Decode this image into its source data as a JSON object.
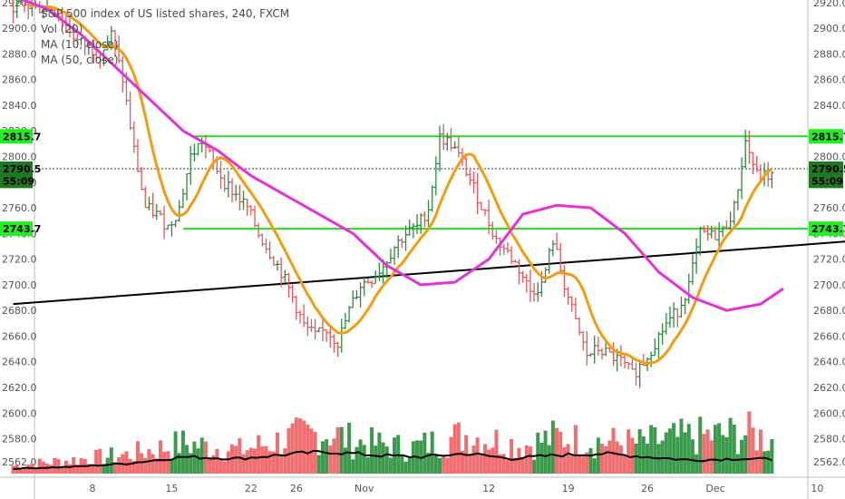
{
  "legend": {
    "title": "S&P 500 index of US listed shares, 240, FXCM",
    "vol": "Vol (20)",
    "ma10": "MA (10, close)",
    "ma50": "MA (50, close)"
  },
  "colors": {
    "up": "#2e8b3e",
    "down": "#e8575a",
    "vol_up": "#3c9a4c",
    "vol_down": "#f06d70",
    "ma10": "#f39c12",
    "ma50": "#e631d8",
    "level": "#22dd22",
    "trendline": "#000000",
    "tag_green": "#22ee22",
    "tag_dark": "#1f7a1f",
    "current": "#333333"
  },
  "chart_data": {
    "type": "candlestick",
    "title": "S&P 500 index of US listed shares, 240, FXCM",
    "yaxis": {
      "range": [
        2550,
        2922
      ],
      "ticks": [
        2562.0,
        2580.0,
        2600.0,
        2620.0,
        2640.0,
        2660.0,
        2680.0,
        2700.0,
        2720.0,
        2740.0,
        2760.0,
        2780.0,
        2800.0,
        2820.0,
        2840.0,
        2860.0,
        2880.0,
        2900.0,
        2920.0
      ],
      "labels_left": [
        "2562.0",
        "2580.0",
        "2600.0",
        "2620.0",
        "2640.0",
        "2660.0",
        "2680.0",
        "2700.0",
        "2720.0",
        "2740.0",
        "2760.0",
        "2780.0",
        "2800.0",
        "2820.0",
        "2840.0",
        "2860.0",
        "2880.0",
        "2900.0",
        "2920.0"
      ],
      "labels_right": [
        "2562.0",
        "2580.0",
        "2600.0",
        "2620.0",
        "2640.0",
        "2660.0",
        "2680.0",
        "2700.0",
        "2720.0",
        "2740.0",
        "2760.0",
        "",
        "2800.0",
        "",
        "2840.0",
        "2860.0",
        "2880.0",
        "2900.0",
        "2920.0"
      ]
    },
    "xaxis": {
      "labels": [
        "8",
        "15",
        "22",
        "26",
        "Nov",
        "12",
        "19",
        "26",
        "Dec",
        "10"
      ],
      "day_index": [
        7,
        14,
        21,
        25,
        31,
        42,
        49,
        56,
        62,
        71
      ]
    },
    "levels": [
      2815.7,
      2743.7
    ],
    "current_price": 2790.5,
    "tags": [
      {
        "text": "2815.7",
        "value": 2815.7,
        "style": "green"
      },
      {
        "text": "2790.5",
        "value": 2790.5,
        "style": "dark"
      },
      {
        "text": "55:09",
        "value": 2781.0,
        "style": "dark"
      },
      {
        "text": "2743.7",
        "value": 2743.7,
        "style": "green"
      }
    ],
    "trendline": [
      {
        "day": 0,
        "price": 2685
      },
      {
        "day": 80,
        "price": 2738
      }
    ],
    "price_anchors": [
      [
        0,
        2918
      ],
      [
        4,
        2915
      ],
      [
        6,
        2890
      ],
      [
        8,
        2880
      ],
      [
        9,
        2895
      ],
      [
        10,
        2860
      ],
      [
        11,
        2805
      ],
      [
        12,
        2760
      ],
      [
        13,
        2755
      ],
      [
        14,
        2745
      ],
      [
        15,
        2760
      ],
      [
        16,
        2800
      ],
      [
        17,
        2812
      ],
      [
        18,
        2795
      ],
      [
        19,
        2780
      ],
      [
        20,
        2770
      ],
      [
        21,
        2760
      ],
      [
        22,
        2740
      ],
      [
        23,
        2725
      ],
      [
        24,
        2710
      ],
      [
        25,
        2690
      ],
      [
        26,
        2668
      ],
      [
        27,
        2660
      ],
      [
        28,
        2665
      ],
      [
        29,
        2655
      ],
      [
        30,
        2680
      ],
      [
        31,
        2700
      ],
      [
        32,
        2705
      ],
      [
        33,
        2715
      ],
      [
        34,
        2730
      ],
      [
        35,
        2740
      ],
      [
        36,
        2745
      ],
      [
        37,
        2760
      ],
      [
        38,
        2815
      ],
      [
        39,
        2810
      ],
      [
        40,
        2795
      ],
      [
        41,
        2775
      ],
      [
        42,
        2755
      ],
      [
        43,
        2735
      ],
      [
        44,
        2725
      ],
      [
        45,
        2712
      ],
      [
        46,
        2695
      ],
      [
        47,
        2700
      ],
      [
        48,
        2735
      ],
      [
        49,
        2700
      ],
      [
        50,
        2670
      ],
      [
        51,
        2645
      ],
      [
        52,
        2650
      ],
      [
        53,
        2645
      ],
      [
        54,
        2640
      ],
      [
        55,
        2630
      ],
      [
        56,
        2640
      ],
      [
        57,
        2655
      ],
      [
        58,
        2670
      ],
      [
        59,
        2680
      ],
      [
        60,
        2700
      ],
      [
        61,
        2740
      ],
      [
        62,
        2738
      ],
      [
        63,
        2742
      ],
      [
        64,
        2760
      ],
      [
        65,
        2812
      ],
      [
        66,
        2785
      ]
    ],
    "ma50_anchors": [
      [
        0,
        2925
      ],
      [
        3,
        2915
      ],
      [
        6,
        2895
      ],
      [
        9,
        2870
      ],
      [
        12,
        2845
      ],
      [
        15,
        2820
      ],
      [
        18,
        2805
      ],
      [
        21,
        2785
      ],
      [
        24,
        2770
      ],
      [
        27,
        2755
      ],
      [
        30,
        2740
      ],
      [
        33,
        2715
      ],
      [
        36,
        2700
      ],
      [
        39,
        2702
      ],
      [
        42,
        2720
      ],
      [
        45,
        2755
      ],
      [
        48,
        2762
      ],
      [
        51,
        2760
      ],
      [
        54,
        2740
      ],
      [
        57,
        2710
      ],
      [
        60,
        2690
      ],
      [
        63,
        2680
      ],
      [
        66,
        2685
      ],
      [
        68,
        2697
      ]
    ],
    "volume_anchors": [
      [
        0,
        0.12
      ],
      [
        5,
        0.2
      ],
      [
        10,
        0.28
      ],
      [
        15,
        0.45
      ],
      [
        20,
        0.35
      ],
      [
        25,
        0.55
      ],
      [
        28,
        0.62
      ],
      [
        30,
        0.48
      ],
      [
        35,
        0.38
      ],
      [
        40,
        0.58
      ],
      [
        45,
        0.42
      ],
      [
        48,
        0.55
      ],
      [
        50,
        0.5
      ],
      [
        55,
        0.45
      ],
      [
        60,
        0.55
      ],
      [
        65,
        0.6
      ],
      [
        67,
        0.5
      ]
    ],
    "volume_ma_anchors": [
      [
        0,
        0.06
      ],
      [
        5,
        0.08
      ],
      [
        10,
        0.12
      ],
      [
        15,
        0.2
      ],
      [
        20,
        0.18
      ],
      [
        25,
        0.24
      ],
      [
        28,
        0.26
      ],
      [
        32,
        0.22
      ],
      [
        36,
        0.2
      ],
      [
        40,
        0.24
      ],
      [
        44,
        0.18
      ],
      [
        48,
        0.22
      ],
      [
        52,
        0.24
      ],
      [
        56,
        0.2
      ],
      [
        60,
        0.16
      ],
      [
        64,
        0.18
      ],
      [
        67,
        0.17
      ]
    ],
    "last_day": 67
  }
}
